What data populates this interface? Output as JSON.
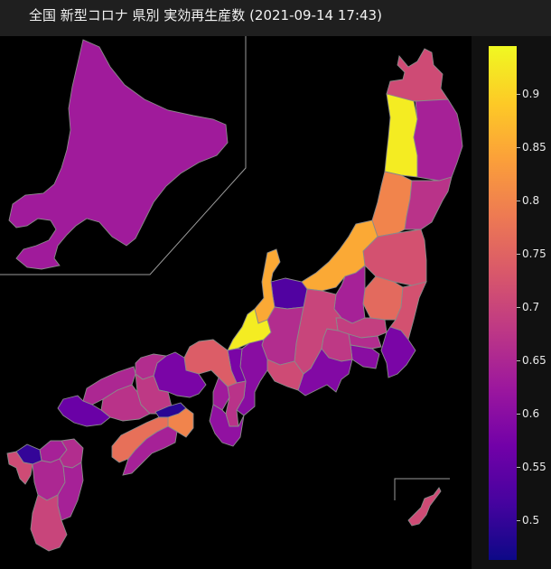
{
  "title": "全国 新型コロナ 県別 実効再生産数 (2021-09-14 17:43)",
  "colorscale": {
    "name": "plasma",
    "min": 0.463,
    "max": 0.945,
    "stops": [
      "#0d0887",
      "#46039f",
      "#7201a8",
      "#9c179e",
      "#bd3786",
      "#d8576b",
      "#ed7953",
      "#fb9f3a",
      "#fdca26",
      "#f0f921"
    ],
    "ticks": [
      "0.9",
      "0.85",
      "0.8",
      "0.75",
      "0.7",
      "0.65",
      "0.6",
      "0.55",
      "0.5"
    ],
    "tick_values": [
      0.9,
      0.85,
      0.8,
      0.75,
      0.7,
      0.65,
      0.6,
      0.55,
      0.5
    ]
  },
  "prefectures": [
    {
      "name": "hokkaido",
      "value": 0.63
    },
    {
      "name": "aomori",
      "value": 0.71
    },
    {
      "name": "akita",
      "value": 0.93
    },
    {
      "name": "iwate",
      "value": 0.64
    },
    {
      "name": "yamagata",
      "value": 0.8
    },
    {
      "name": "miyagi",
      "value": 0.67
    },
    {
      "name": "niigata",
      "value": 0.85
    },
    {
      "name": "fukushima",
      "value": 0.72
    },
    {
      "name": "tochigi",
      "value": 0.76
    },
    {
      "name": "ibaraki",
      "value": 0.72
    },
    {
      "name": "gunma",
      "value": 0.64
    },
    {
      "name": "saitama",
      "value": 0.69
    },
    {
      "name": "tokyo",
      "value": 0.66
    },
    {
      "name": "chiba",
      "value": 0.58
    },
    {
      "name": "kanagawa",
      "value": 0.6
    },
    {
      "name": "yamanashi",
      "value": 0.68
    },
    {
      "name": "nagano",
      "value": 0.7
    },
    {
      "name": "shizuoka",
      "value": 0.59
    },
    {
      "name": "toyama",
      "value": 0.53
    },
    {
      "name": "ishikawa",
      "value": 0.85
    },
    {
      "name": "fukui",
      "value": 0.93
    },
    {
      "name": "gifu",
      "value": 0.66
    },
    {
      "name": "aichi",
      "value": 0.71
    },
    {
      "name": "mie",
      "value": 0.6
    },
    {
      "name": "shiga",
      "value": 0.58
    },
    {
      "name": "kyoto",
      "value": 0.74
    },
    {
      "name": "osaka",
      "value": 0.63
    },
    {
      "name": "nara",
      "value": 0.67
    },
    {
      "name": "wakayama",
      "value": 0.61
    },
    {
      "name": "hyogo",
      "value": 0.58
    },
    {
      "name": "tottori",
      "value": 0.66
    },
    {
      "name": "okayama",
      "value": 0.68
    },
    {
      "name": "shimane",
      "value": 0.65
    },
    {
      "name": "hiroshima",
      "value": 0.67
    },
    {
      "name": "yamaguchi",
      "value": 0.56
    },
    {
      "name": "kagawa",
      "value": 0.49
    },
    {
      "name": "tokushima",
      "value": 0.8
    },
    {
      "name": "ehime",
      "value": 0.77
    },
    {
      "name": "kochi",
      "value": 0.64
    },
    {
      "name": "fukuoka",
      "value": 0.64
    },
    {
      "name": "saga",
      "value": 0.5
    },
    {
      "name": "nagasaki",
      "value": 0.71
    },
    {
      "name": "oita",
      "value": 0.66
    },
    {
      "name": "kumamoto",
      "value": 0.65
    },
    {
      "name": "miyazaki",
      "value": 0.64
    },
    {
      "name": "kagoshima",
      "value": 0.7
    },
    {
      "name": "okinawa",
      "value": 0.71
    }
  ]
}
